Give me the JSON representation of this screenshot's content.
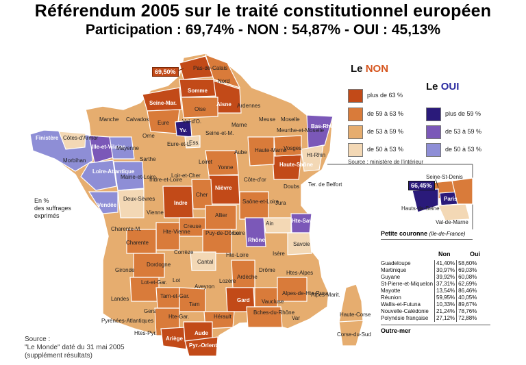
{
  "title": "Référendum 2005 sur le traité constitutionnel européen",
  "subtitle": "Participation : 69,74% - NON : 54,87% - OUI : 45,13%",
  "colors": {
    "non_63": "#c24a18",
    "non_59_63": "#d97b3a",
    "non_53_59": "#e6ad6f",
    "non_50_53": "#f3d8b5",
    "oui_59": "#2a1a7a",
    "oui_53_59": "#7b58b8",
    "oui_50_53": "#8e8ed6"
  },
  "legend": {
    "non_prefix": "Le ",
    "non_word": "NON",
    "oui_prefix": "Le ",
    "oui_word": "OUI",
    "non_items": [
      "plus de 63 %",
      "de 59 à 63 %",
      "de 53 à 59 %",
      "de 50 à 53 %"
    ],
    "oui_items": [
      "plus de 59 %",
      "de 53 à 59 %",
      "de 50 à 53 %"
    ],
    "source": "Source : ministère de l'intérieur"
  },
  "max_box": "69,50%",
  "petite_couronne": {
    "title": "Petite couronne",
    "subtitle": "(Ile-de-France)",
    "pct": "66,45%",
    "labels": [
      "Seine-St-Denis",
      "Paris",
      "Hauts-de-Seine",
      "Val-de-Marne"
    ]
  },
  "suffrages_note": [
    "En %",
    "des suffrages",
    "exprimés"
  ],
  "outremer": {
    "head_non": "Non",
    "head_oui": "Oui",
    "title": "Outre-mer",
    "rows": [
      {
        "name": "Guadeloupe",
        "non": "41,40%",
        "oui": "58,60%"
      },
      {
        "name": "Martinique",
        "non": "30,97%",
        "oui": "69,03%"
      },
      {
        "name": "Guyane",
        "non": "39,92%",
        "oui": "60,08%"
      },
      {
        "name": "St-Pierre-et-Miquelon",
        "non": "37,31%",
        "oui": "62,69%"
      },
      {
        "name": "Mayotte",
        "non": "13,54%",
        "oui": "86,46%"
      },
      {
        "name": "Réunion",
        "non": "59,95%",
        "oui": "40,05%"
      },
      {
        "name": "Wallis-et-Futuna",
        "non": "10,33%",
        "oui": "89,67%"
      },
      {
        "name": "Nouvelle-Calédonie",
        "non": "21,24%",
        "oui": "78,76%"
      },
      {
        "name": "Polynésie française",
        "non": "27,12%",
        "oui": "72,88%"
      }
    ]
  },
  "source_block": [
    "Source :",
    "\"Le Monde\" daté du 31 mai 2005",
    "(supplément résultats)"
  ],
  "departements": [
    {
      "name": "Pas-de-Calais",
      "cls": "non_63"
    },
    {
      "name": "Nord",
      "cls": "non_59_63"
    },
    {
      "name": "Somme",
      "cls": "non_63"
    },
    {
      "name": "Aisne",
      "cls": "non_63"
    },
    {
      "name": "Ardennes",
      "cls": "non_59_63"
    },
    {
      "name": "Seine-Mar.",
      "cls": "non_63"
    },
    {
      "name": "Oise",
      "cls": "non_59_63"
    },
    {
      "name": "Manche",
      "cls": "non_53_59"
    },
    {
      "name": "Calvados",
      "cls": "non_53_59"
    },
    {
      "name": "Eure",
      "cls": "non_59_63"
    },
    {
      "name": "Val-d'O.",
      "cls": "non_53_59"
    },
    {
      "name": "Yv.",
      "cls": "oui_59"
    },
    {
      "name": "Ess.",
      "cls": "non_50_53"
    },
    {
      "name": "Seine-et-M.",
      "cls": "non_53_59"
    },
    {
      "name": "Marne",
      "cls": "non_53_59"
    },
    {
      "name": "Meuse",
      "cls": "non_53_59"
    },
    {
      "name": "Moselle",
      "cls": "non_53_59"
    },
    {
      "name": "Bas-Rhin",
      "cls": "oui_53_59"
    },
    {
      "name": "Finistère",
      "cls": "oui_50_53"
    },
    {
      "name": "Côtes-d'Armor",
      "cls": "non_50_53"
    },
    {
      "name": "Morbihan",
      "cls": "oui_50_53"
    },
    {
      "name": "Ille-et-Vilaine",
      "cls": "oui_53_59"
    },
    {
      "name": "Mayenne",
      "cls": "oui_50_53"
    },
    {
      "name": "Orne",
      "cls": "non_53_59"
    },
    {
      "name": "Eure-et-L.",
      "cls": "non_53_59"
    },
    {
      "name": "Loiret",
      "cls": "non_53_59"
    },
    {
      "name": "Aube",
      "cls": "non_53_59"
    },
    {
      "name": "Haute-Marne",
      "cls": "non_59_63"
    },
    {
      "name": "Meurthe-et-Moselle",
      "cls": "non_53_59"
    },
    {
      "name": "Vosges",
      "cls": "non_59_63"
    },
    {
      "name": "Ht-Rhin",
      "cls": "non_50_53"
    },
    {
      "name": "Sarthe",
      "cls": "non_53_59"
    },
    {
      "name": "Loire-Atlantique",
      "cls": "oui_50_53"
    },
    {
      "name": "Maine-et-Loire",
      "cls": "oui_50_53"
    },
    {
      "name": "Indre-et-Loire",
      "cls": "non_53_59"
    },
    {
      "name": "Loir-et-Cher",
      "cls": "non_53_59"
    },
    {
      "name": "Yonne",
      "cls": "non_59_63"
    },
    {
      "name": "Côte-d'or",
      "cls": "non_53_59"
    },
    {
      "name": "Haute-Saône",
      "cls": "non_63"
    },
    {
      "name": "Doubs",
      "cls": "non_53_59"
    },
    {
      "name": "Ter. de Belfort",
      "cls": "non_59_63"
    },
    {
      "name": "Vendée",
      "cls": "oui_50_53"
    },
    {
      "name": "Deux-Sèvres",
      "cls": "non_50_53"
    },
    {
      "name": "Vienne",
      "cls": "non_53_59"
    },
    {
      "name": "Indre",
      "cls": "non_63"
    },
    {
      "name": "Cher",
      "cls": "non_59_63"
    },
    {
      "name": "Nièvre",
      "cls": "non_63"
    },
    {
      "name": "Saône-et-Loire",
      "cls": "non_59_63"
    },
    {
      "name": "Jura",
      "cls": "non_53_59"
    },
    {
      "name": "Charente-M.",
      "cls": "non_53_59"
    },
    {
      "name": "Charente",
      "cls": "non_59_63"
    },
    {
      "name": "Hte-Vienne",
      "cls": "non_59_63"
    },
    {
      "name": "Creuse",
      "cls": "non_59_63"
    },
    {
      "name": "Allier",
      "cls": "non_59_63"
    },
    {
      "name": "Puy-de-Dôme",
      "cls": "non_59_63"
    },
    {
      "name": "Loire",
      "cls": "non_53_59"
    },
    {
      "name": "Rhône",
      "cls": "oui_53_59"
    },
    {
      "name": "Ain",
      "cls": "non_50_53"
    },
    {
      "name": "Hte-Savoie",
      "cls": "oui_53_59"
    },
    {
      "name": "Savoie",
      "cls": "non_50_53"
    },
    {
      "name": "Gironde",
      "cls": "non_53_59"
    },
    {
      "name": "Dordogne",
      "cls": "non_59_63"
    },
    {
      "name": "Corrèze",
      "cls": "non_53_59"
    },
    {
      "name": "Cantal",
      "cls": "non_50_53"
    },
    {
      "name": "Hte-Loire",
      "cls": "non_53_59"
    },
    {
      "name": "Ardèche",
      "cls": "non_59_63"
    },
    {
      "name": "Isère",
      "cls": "non_53_59"
    },
    {
      "name": "Drôme",
      "cls": "non_53_59"
    },
    {
      "name": "Htes-Alpes",
      "cls": "non_53_59"
    },
    {
      "name": "Landes",
      "cls": "non_53_59"
    },
    {
      "name": "Lot-et-Gar.",
      "cls": "non_59_63"
    },
    {
      "name": "Lot",
      "cls": "non_53_59"
    },
    {
      "name": "Aveyron",
      "cls": "non_53_59"
    },
    {
      "name": "Lozère",
      "cls": "non_53_59"
    },
    {
      "name": "Gard",
      "cls": "non_63"
    },
    {
      "name": "Vaucluse",
      "cls": "non_59_63"
    },
    {
      "name": "Alpes-de-Hte-Prov.",
      "cls": "non_59_63"
    },
    {
      "name": "Alpes-Marit.",
      "cls": "non_53_59"
    },
    {
      "name": "Var",
      "cls": "non_53_59"
    },
    {
      "name": "Bches-du-Rhône",
      "cls": "non_59_63"
    },
    {
      "name": "Hérault",
      "cls": "non_59_63"
    },
    {
      "name": "Tarn-et-Gar.",
      "cls": "non_59_63"
    },
    {
      "name": "Tarn",
      "cls": "non_59_63"
    },
    {
      "name": "Gers",
      "cls": "non_53_59"
    },
    {
      "name": "Hte-Gar.",
      "cls": "non_53_59"
    },
    {
      "name": "Pyrénées-Atlantiques",
      "cls": "non_53_59"
    },
    {
      "name": "Htes-Pyr.",
      "cls": "non_53_59"
    },
    {
      "name": "Ariège",
      "cls": "non_63"
    },
    {
      "name": "Aude",
      "cls": "non_63"
    },
    {
      "name": "Pyr.-Orientales",
      "cls": "non_63"
    },
    {
      "name": "Haute-Corse",
      "cls": "non_53_59"
    },
    {
      "name": "Corse-du-Sud",
      "cls": "non_53_59"
    }
  ]
}
